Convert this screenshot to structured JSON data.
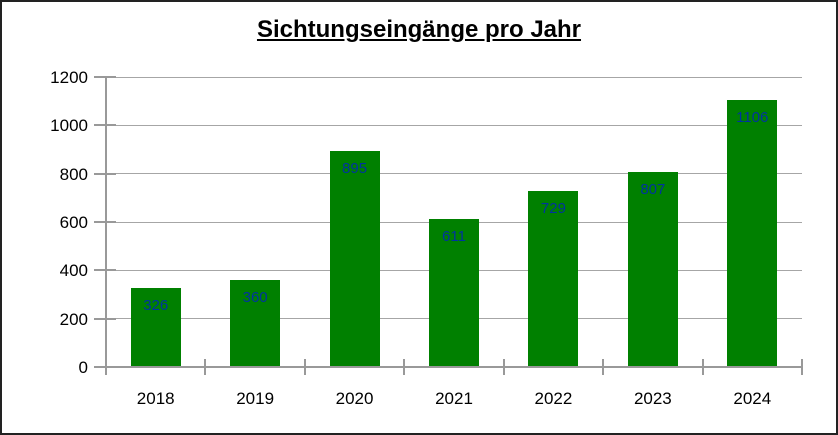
{
  "window": {
    "background": "#ffffff",
    "border_color": "#222222"
  },
  "chart_data": {
    "type": "bar",
    "title": "Sichtungseingänge pro Jahr",
    "categories": [
      "2018",
      "2019",
      "2020",
      "2021",
      "2022",
      "2023",
      "2024"
    ],
    "values": [
      326,
      360,
      895,
      611,
      729,
      807,
      1106
    ],
    "data_labels": [
      "326",
      "360",
      "895",
      "611",
      "729",
      "807",
      "1106"
    ],
    "xlabel": "",
    "ylabel": "",
    "ylim": [
      0,
      1200
    ],
    "yticks": [
      0,
      200,
      400,
      600,
      800,
      1000,
      1200
    ],
    "grid": "horizontal",
    "legend": "none",
    "bar_color": "#008000",
    "data_label_color": "#0033A0",
    "axis_color": "#999999",
    "grid_color": "#a6a6a6",
    "text_color": "#000000"
  }
}
